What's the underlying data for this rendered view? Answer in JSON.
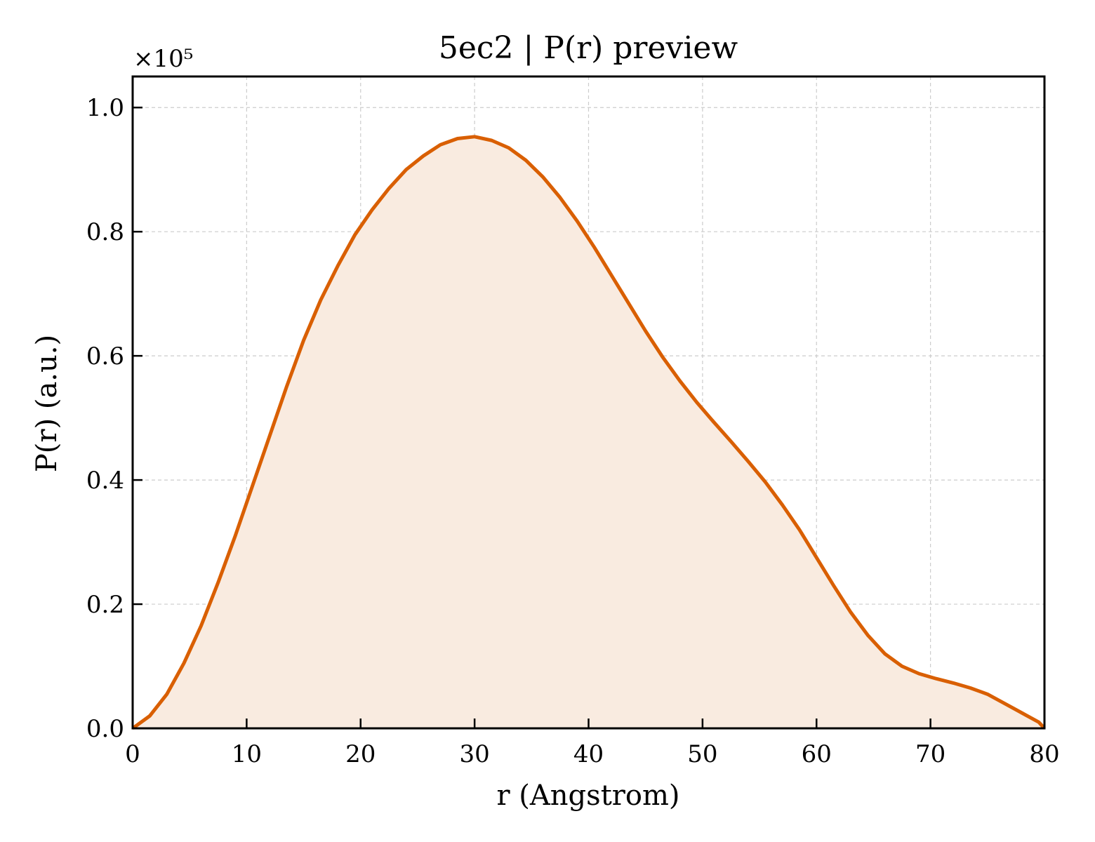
{
  "chart_data": {
    "type": "area",
    "title": "5ec2 | P(r) preview",
    "xlabel": "r (Angstrom)",
    "ylabel": "P(r) (a.u.)",
    "y_multiplier_label": "×10⁵",
    "xlim": [
      0,
      80
    ],
    "ylim": [
      0,
      1.05
    ],
    "xticks": [
      0,
      10,
      20,
      30,
      40,
      50,
      60,
      70,
      80
    ],
    "xtick_labels": [
      "0",
      "10",
      "20",
      "30",
      "40",
      "50",
      "60",
      "70",
      "80"
    ],
    "yticks": [
      0,
      0.2,
      0.4,
      0.6,
      0.8,
      1.0
    ],
    "ytick_labels": [
      "0.0",
      "0.2",
      "0.4",
      "0.6",
      "0.8",
      "1.0"
    ],
    "grid": true,
    "line_color": "#d95f02",
    "fill_color": "#f9ebe0",
    "series": [
      {
        "x": [
          0,
          1.5,
          3,
          4.5,
          6,
          7.5,
          9,
          10.5,
          12,
          13.5,
          15,
          16.5,
          18,
          19.5,
          21,
          22.5,
          24,
          25.5,
          27,
          28.5,
          30,
          31.5,
          33,
          34.5,
          36,
          37.5,
          39,
          40.5,
          42,
          43.5,
          45,
          46.5,
          48,
          49.5,
          51,
          52.5,
          54,
          55.5,
          57,
          58.5,
          60,
          61.5,
          63,
          64.5,
          66,
          67.5,
          69,
          70.5,
          72,
          73.5,
          75,
          76.5,
          78,
          79.5,
          80
        ],
        "y": [
          0.0,
          0.02,
          0.055,
          0.105,
          0.165,
          0.235,
          0.31,
          0.39,
          0.47,
          0.55,
          0.625,
          0.69,
          0.745,
          0.795,
          0.835,
          0.87,
          0.9,
          0.922,
          0.94,
          0.95,
          0.953,
          0.947,
          0.935,
          0.915,
          0.888,
          0.855,
          0.817,
          0.775,
          0.73,
          0.685,
          0.64,
          0.598,
          0.56,
          0.525,
          0.493,
          0.462,
          0.43,
          0.397,
          0.36,
          0.32,
          0.275,
          0.23,
          0.187,
          0.15,
          0.12,
          0.1,
          0.088,
          0.08,
          0.073,
          0.065,
          0.055,
          0.04,
          0.025,
          0.01,
          0.0
        ]
      }
    ]
  }
}
